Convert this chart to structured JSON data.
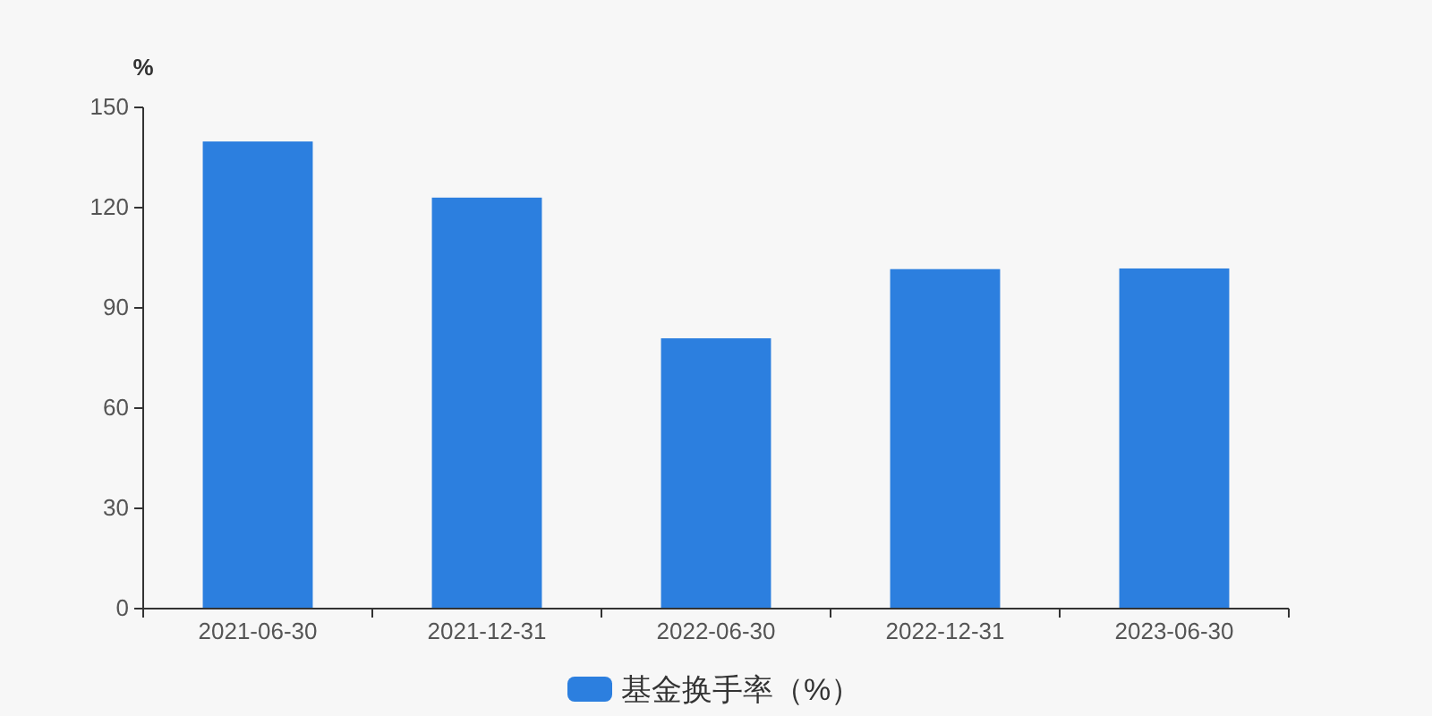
{
  "chart_data": {
    "type": "bar",
    "ylabel": "%",
    "categories": [
      "2021-06-30",
      "2021-12-31",
      "2022-06-30",
      "2022-12-31",
      "2023-06-30"
    ],
    "series": [
      {
        "name": "基金换手率（%）",
        "color": "#2c7fdf",
        "values": [
          139.8,
          123.0,
          80.9,
          101.6,
          101.8
        ]
      }
    ],
    "ylim": [
      0,
      150
    ],
    "yticks": [
      0,
      30,
      60,
      90,
      120,
      150
    ],
    "legend": "bottom",
    "grid": false
  }
}
